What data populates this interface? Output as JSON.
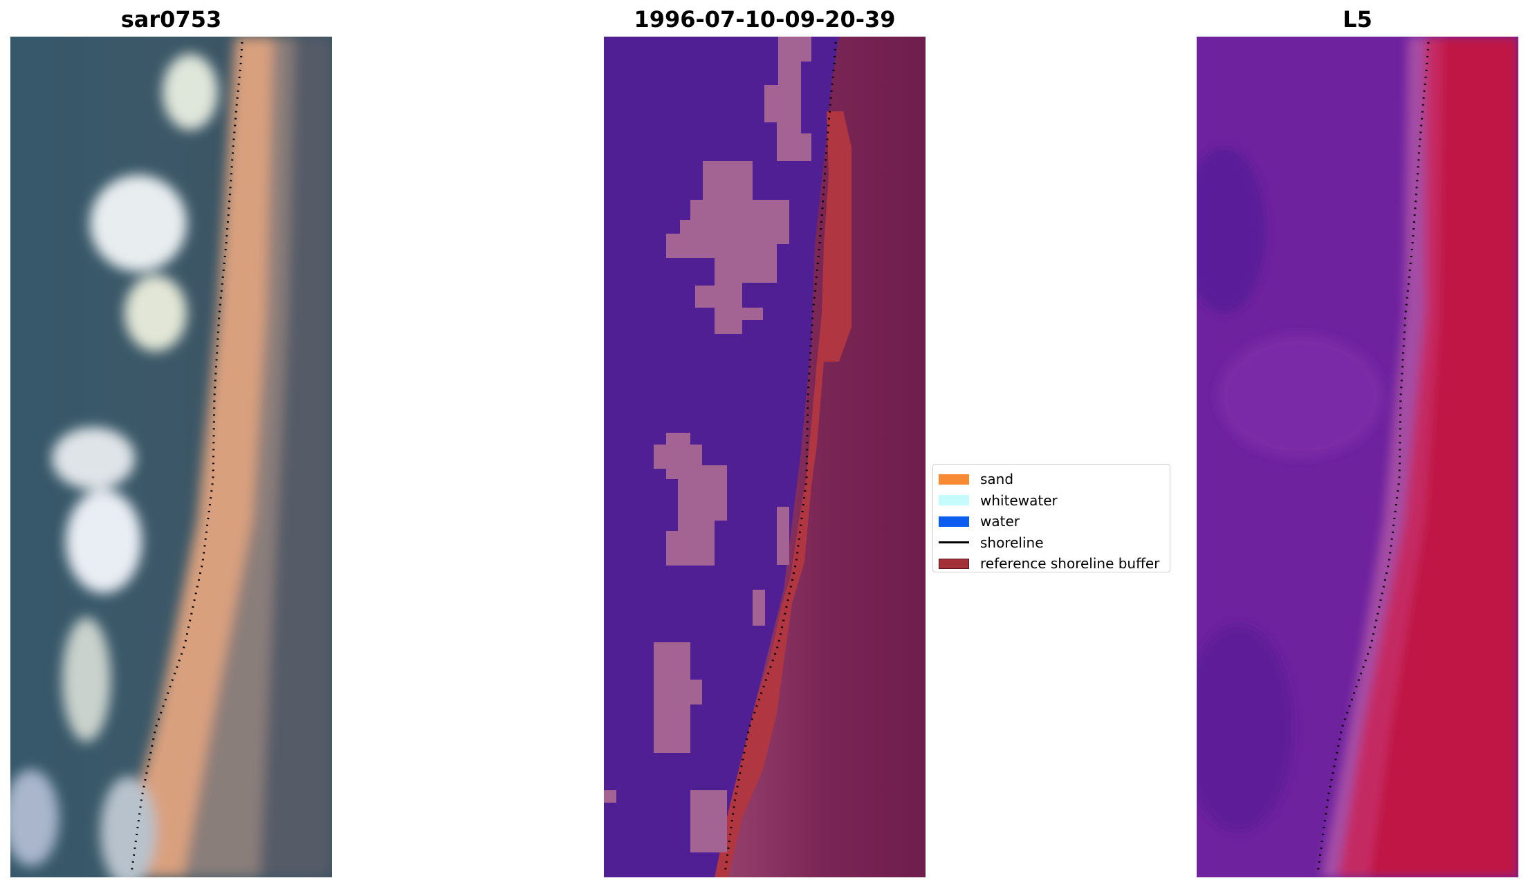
{
  "panels": [
    {
      "title": "sar0753",
      "kind": "rgb-image"
    },
    {
      "title": "1996-07-10-09-20-39",
      "kind": "classified-image"
    },
    {
      "title": "L5",
      "kind": "mndwi-image"
    }
  ],
  "legend": {
    "items": [
      {
        "label": "sand",
        "color": "#f98a35",
        "type": "patch"
      },
      {
        "label": "whitewater",
        "color": "#c6fbfc",
        "type": "patch"
      },
      {
        "label": "water",
        "color": "#0d5cf0",
        "type": "patch"
      },
      {
        "label": "shoreline",
        "color": "#000000",
        "type": "line"
      },
      {
        "label": "reference shoreline buffer",
        "color": "#a33036",
        "type": "patch"
      }
    ]
  },
  "colors": {
    "water_rgb": "#2f4b5a",
    "sand_rgb": "#d9a07e",
    "classified_water": "#4f1f93",
    "classified_whitewater": "#a46493",
    "classified_buffer": "#b03642",
    "classified_land": "#7a2150",
    "index_water": "#6a1f9e",
    "index_land": "#c01345"
  }
}
